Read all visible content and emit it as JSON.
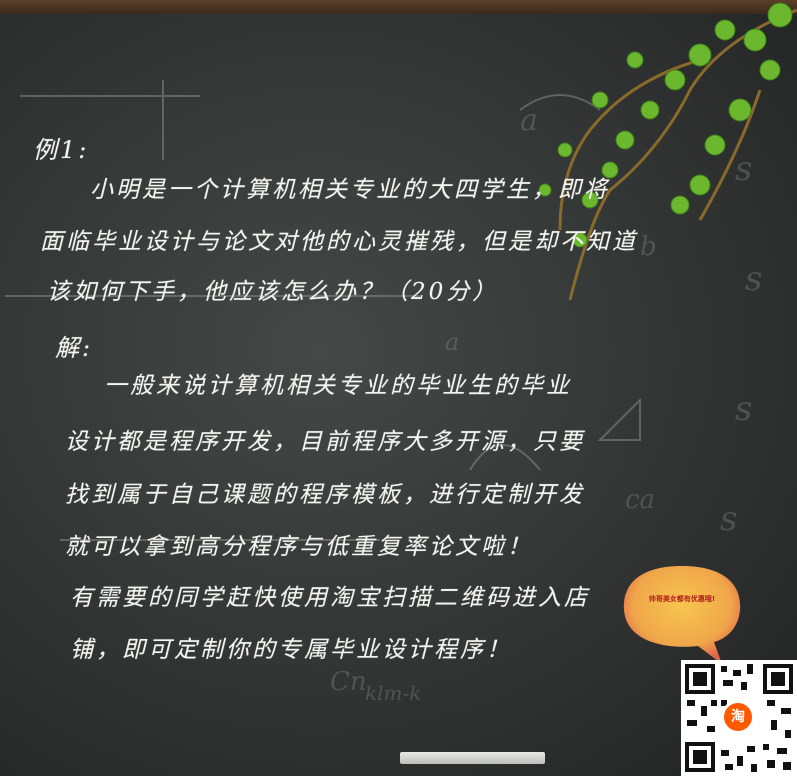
{
  "example": {
    "label": "例1:",
    "question_lines": [
      "小明是一个计算机相关专业的大四学生，即将",
      "面临毕业设计与论文对他的心灵摧残，但是却不知道",
      "该如何下手，他应该怎么办？（20分）"
    ]
  },
  "solution": {
    "label": "解:",
    "answer_lines": [
      "一般来说计算机相关专业的毕业生的毕业",
      "设计都是程序开发，目前程序大多开源，只要",
      "找到属于自己课题的程序模板，进行定制开发",
      "就可以拿到高分程序与低重复率论文啦！",
      "有需要的同学赶快使用淘宝扫描二维码进入店",
      "铺，即可定制你的专属毕业设计程序！"
    ]
  },
  "bubble": {
    "text": "帅哥美女都有优惠哦!",
    "color": "#f0a64a"
  },
  "qr": {
    "badge_text": "淘",
    "badge_color": "#ff5a00"
  }
}
